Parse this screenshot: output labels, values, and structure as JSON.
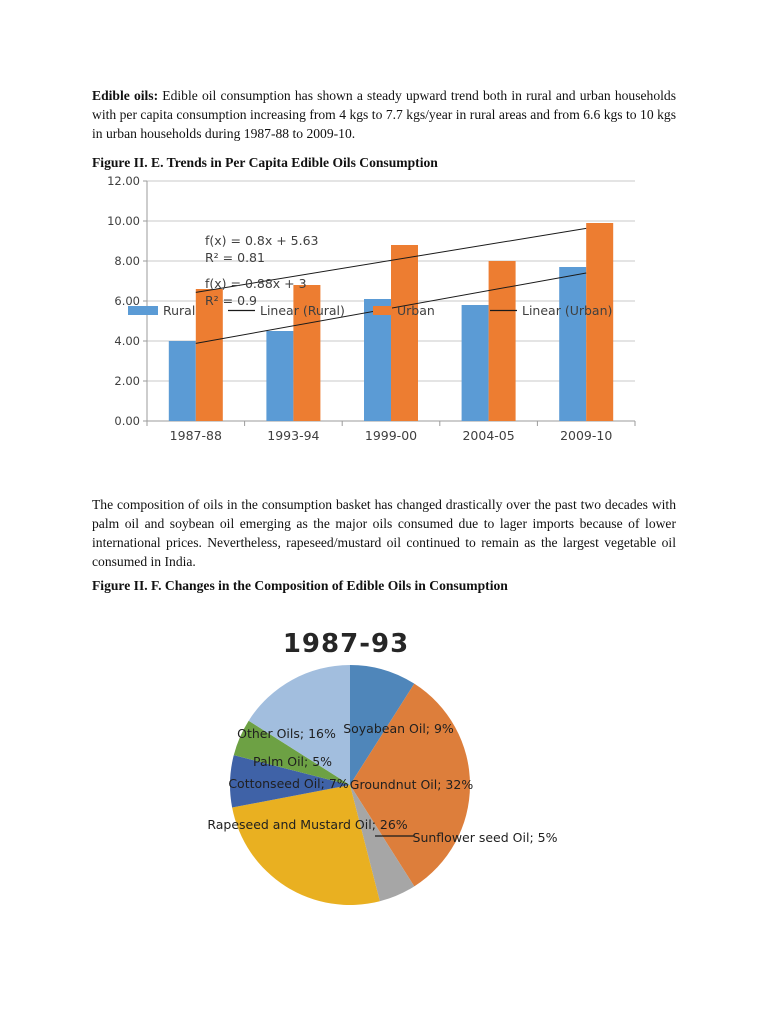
{
  "document": {
    "para1_lead": "Edible oils:",
    "para1_body": "Edible oil consumption has shown a steady upward trend both in rural and urban households with per capita consumption increasing from 4 kgs to 7.7 kgs/year in rural areas and from 6.6 kgs to 10 kgs in urban households during 1987-88 to 2009-10.",
    "figure_e_caption": "Figure II. E. Trends in Per Capita Edible Oils Consumption",
    "para2": "The composition of oils in the consumption basket has changed drastically over the past two decades with palm oil and soybean oil emerging as the major oils consumed due to lager imports because of lower international prices.  Nevertheless, rapeseed/mustard oil continued to remain as the largest vegetable oil consumed in India.",
    "figure_f_caption": "Figure II. F. Changes in the Composition of Edible Oils in Consumption"
  },
  "chart_data": [
    {
      "type": "bar",
      "title": "Trends in Per Capita Edible Oils Consumption",
      "categories": [
        "1987-88",
        "1993-94",
        "1999-00",
        "2004-05",
        "2009-10"
      ],
      "series": [
        {
          "name": "Rural",
          "color": "#5b9bd5",
          "values": [
            4.0,
            4.5,
            6.1,
            5.8,
            7.7
          ]
        },
        {
          "name": "Urban",
          "color": "#ed7d31",
          "values": [
            6.6,
            6.8,
            8.8,
            8.0,
            9.9
          ]
        }
      ],
      "trendlines": [
        {
          "name": "Linear (Urban)",
          "equation": "f(x) = 0.8x + 5.63",
          "r_squared": "R² = 0.81",
          "y_start": 6.43,
          "y_end": 9.63
        },
        {
          "name": "Linear (Rural)",
          "equation": "f(x) = 0.88x + 3",
          "r_squared": "R² = 0.9",
          "y_start": 3.88,
          "y_end": 7.4
        }
      ],
      "ylim": [
        0,
        12
      ],
      "ytick_labels_top_down": [
        "12.00",
        "10.00",
        "8.00",
        "6.00",
        "4.00",
        "2.00",
        "0.00"
      ],
      "legend": [
        {
          "label": "Rural",
          "swatch": "rect",
          "color": "#5b9bd5"
        },
        {
          "label": "Linear (Rural)",
          "swatch": "line",
          "color": "#1a1a1a"
        },
        {
          "label": "Urban",
          "swatch": "rect",
          "color": "#ed7d31"
        },
        {
          "label": "Linear (Urban)",
          "swatch": "line",
          "color": "#1a1a1a"
        }
      ],
      "grid": true,
      "grid_color": "#c9c9c9",
      "axis_color": "#9b9b9b",
      "text_color": "#3f3f3f",
      "legend_position": "middle-overlay"
    },
    {
      "type": "pie",
      "title": "1987-93",
      "start_angle_deg": 0,
      "direction": "clockwise",
      "slices": [
        {
          "label": "Soyabean Oil; 9%",
          "name": "Soyabean Oil",
          "value": 9,
          "color": "#4f86ba"
        },
        {
          "label": "Groundnut Oil; 32%",
          "name": "Groundnut Oil",
          "value": 32,
          "color": "#dd7e3b"
        },
        {
          "label": "Sunflower seed Oil; 5%",
          "name": "Sunflower seed Oil",
          "value": 5,
          "color": "#a6a6a6"
        },
        {
          "label": "Rapeseed and Mustard Oil; 26%",
          "name": "Rapeseed and Mustard Oil",
          "value": 26,
          "color": "#e9b021"
        },
        {
          "label": "Cottonseed Oil; 7%",
          "name": "Cottonseed Oil",
          "value": 7,
          "color": "#3f62a7"
        },
        {
          "label": "Palm Oil; 5%",
          "name": "Palm Oil",
          "value": 5,
          "color": "#6da144"
        },
        {
          "label": "Other Oils; 16%",
          "name": "Other Oils",
          "value": 16,
          "color": "#a2bede"
        }
      ],
      "label_color": "#1f1f1f",
      "title_color": "#262626"
    }
  ]
}
